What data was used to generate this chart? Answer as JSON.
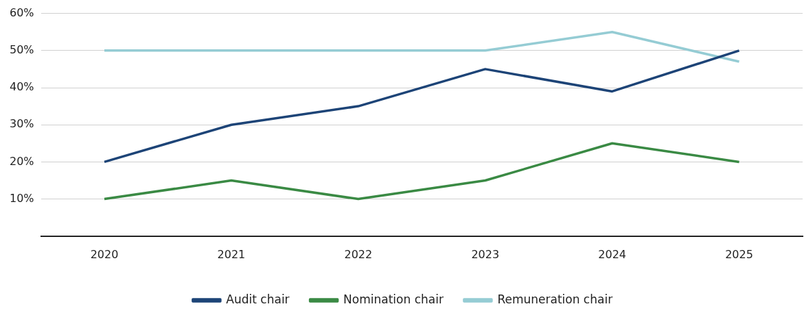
{
  "chart_data": {
    "type": "line",
    "categories": [
      "2020",
      "2021",
      "2022",
      "2023",
      "2024",
      "2025"
    ],
    "series": [
      {
        "name": "Audit chair",
        "color": "#1d4477",
        "values": [
          20,
          30,
          35,
          45,
          39,
          50
        ]
      },
      {
        "name": "Nomination chair",
        "color": "#3a8a44",
        "values": [
          10,
          15,
          10,
          15,
          25,
          20
        ]
      },
      {
        "name": "Remuneration chair",
        "color": "#95ccd4",
        "values": [
          50,
          50,
          50,
          50,
          55,
          47
        ]
      }
    ],
    "ylim": [
      0,
      60
    ],
    "yticks": [
      {
        "value": 0,
        "label": null
      },
      {
        "value": 10,
        "label": "10%"
      },
      {
        "value": 20,
        "label": "20%"
      },
      {
        "value": 30,
        "label": "30%"
      },
      {
        "value": 40,
        "label": "40%"
      },
      {
        "value": 50,
        "label": "50%"
      },
      {
        "value": 60,
        "label": "60%"
      }
    ],
    "grid": "y",
    "legend": "bottom",
    "marker": "none",
    "line_style": "solid"
  }
}
